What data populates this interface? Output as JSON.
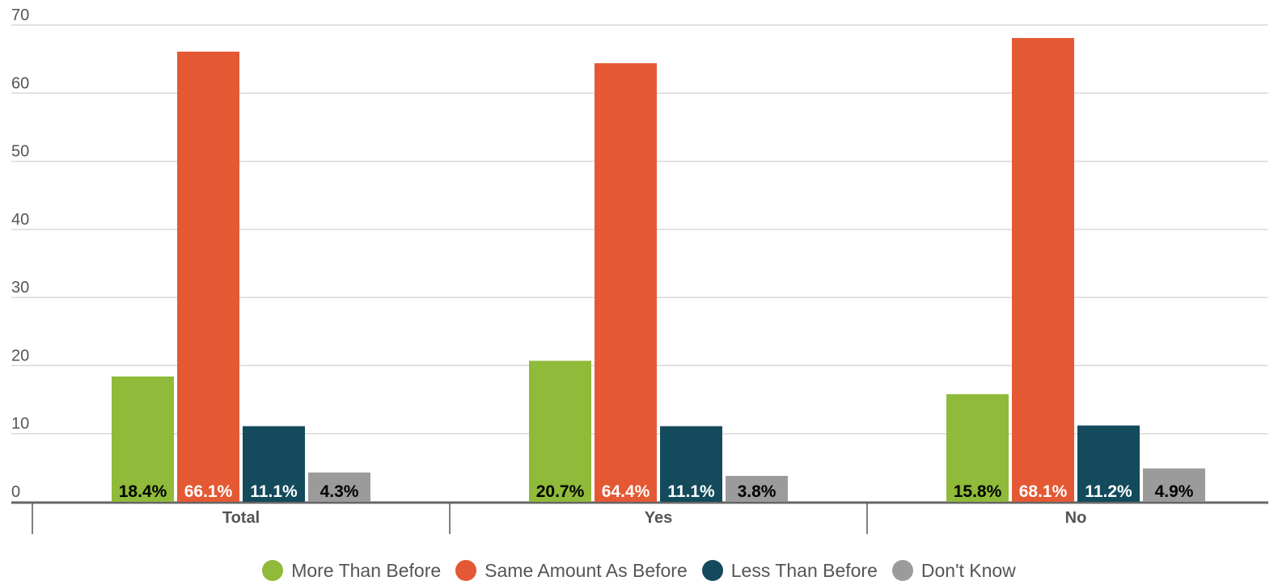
{
  "chart_data": {
    "type": "bar",
    "categories": [
      "Total",
      "Yes",
      "No"
    ],
    "series": [
      {
        "name": "More Than Before",
        "color": "#8fba3a",
        "values": [
          18.4,
          20.7,
          15.8
        ],
        "labels": [
          "18.4%",
          "20.7%",
          "15.8%"
        ]
      },
      {
        "name": "Same Amount As Before",
        "color": "#e45934",
        "values": [
          66.1,
          64.4,
          68.1
        ],
        "labels": [
          "66.1%",
          "64.4%",
          "68.1%"
        ]
      },
      {
        "name": "Less Than Before",
        "color": "#134a5c",
        "values": [
          11.1,
          11.1,
          11.2
        ],
        "labels": [
          "11.1%",
          "11.1%",
          "11.2%"
        ]
      },
      {
        "name": "Don't Know",
        "color": "#9b9b9b",
        "values": [
          4.3,
          3.8,
          4.9
        ],
        "labels": [
          "4.3%",
          "3.8%",
          "4.9%"
        ]
      }
    ],
    "ylim": [
      0,
      70
    ],
    "yticks": [
      "0",
      "10",
      "20",
      "30",
      "40",
      "50",
      "60",
      "70"
    ],
    "title": "",
    "xlabel": "",
    "ylabel": "",
    "grid": true,
    "legend_position": "bottom"
  }
}
